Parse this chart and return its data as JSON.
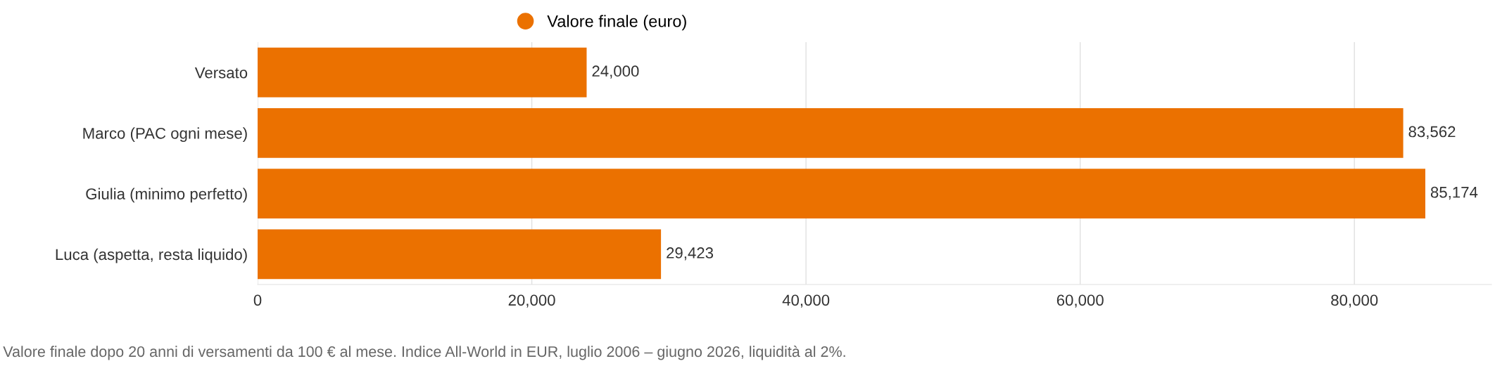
{
  "chart_data": {
    "type": "bar",
    "orientation": "horizontal",
    "categories": [
      "Versato",
      "Marco (PAC ogni mese)",
      "Giulia (minimo perfetto)",
      "Luca (aspetta, resta liquido)"
    ],
    "series": [
      {
        "name": "Valore finale (euro)",
        "color": "#eb7100",
        "values": [
          24000,
          83562,
          85174,
          29423
        ]
      }
    ],
    "value_labels": [
      "24,000",
      "83,562",
      "85,174",
      "29,423"
    ],
    "xlim": [
      0,
      90000
    ],
    "xticks": [
      {
        "value": 0,
        "label": "0"
      },
      {
        "value": 20000,
        "label": "20,000"
      },
      {
        "value": 40000,
        "label": "40,000"
      },
      {
        "value": 60000,
        "label": "60,000"
      },
      {
        "value": 80000,
        "label": "80,000"
      }
    ],
    "grid": "x",
    "legend": "top",
    "annotations": [
      "Valore finale dopo 20 anni di versamenti da 100 € al mese. Indice All-World in EUR, luglio 2006 – giugno 2026, liquidità al 2%."
    ]
  }
}
